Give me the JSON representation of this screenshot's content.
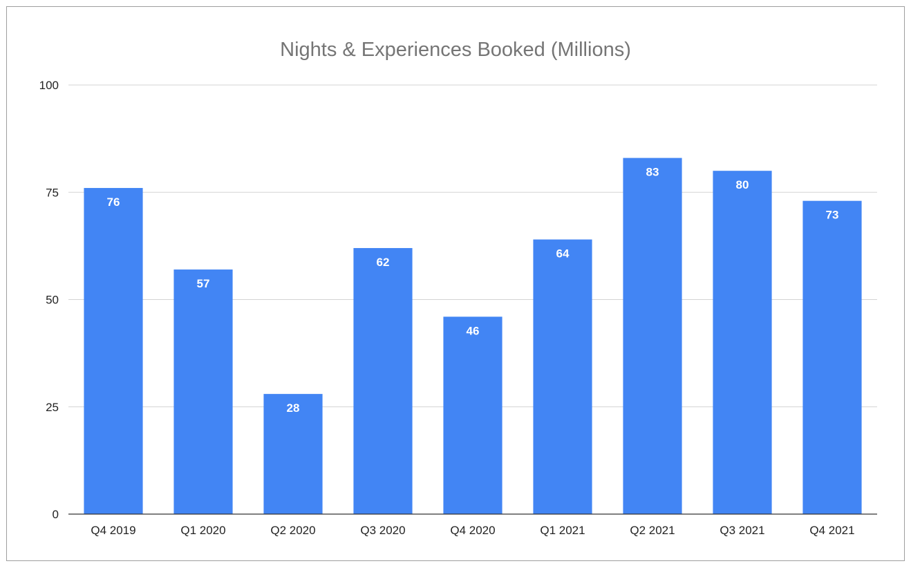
{
  "chart_data": {
    "type": "bar",
    "title": "Nights & Experiences Booked (Millions)",
    "xlabel": "",
    "ylabel": "",
    "categories": [
      "Q4 2019",
      "Q1 2020",
      "Q2 2020",
      "Q3 2020",
      "Q4 2020",
      "Q1 2021",
      "Q2 2021",
      "Q3 2021",
      "Q4 2021"
    ],
    "values": [
      76,
      57,
      28,
      62,
      46,
      64,
      83,
      80,
      73
    ],
    "data_labels": [
      "76",
      "57",
      "28",
      "62",
      "46",
      "64",
      "83",
      "80",
      "73"
    ],
    "ylim": [
      0,
      100
    ],
    "yticks": [
      0,
      25,
      50,
      75,
      100
    ],
    "ytick_labels": [
      "0",
      "25",
      "50",
      "75",
      "100"
    ],
    "grid": true,
    "legend": "none",
    "bar_color": "#4285f4"
  }
}
